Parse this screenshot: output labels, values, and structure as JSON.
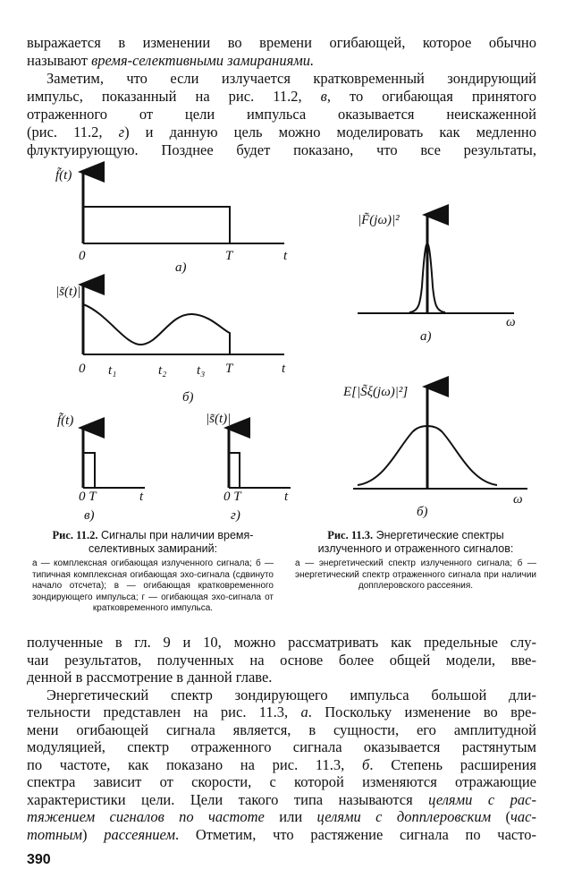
{
  "top_text": [
    [
      {
        "t": "выражается в изменении во времени огибающей, которое обычно"
      }
    ],
    [
      {
        "t": "называют "
      },
      {
        "t": "время-селективными замираниями.",
        "i": true
      }
    ],
    [
      {
        "t": "Заметим, что если излучается кратковременный зондирующий"
      }
    ],
    [
      {
        "t": "импульс, показанный на рис. 11.2, "
      },
      {
        "t": "в",
        "i": true
      },
      {
        "t": ", то огибающая принятого"
      }
    ],
    [
      {
        "t": "отраженного от цели импульса оказывается неискаженной"
      }
    ],
    [
      {
        "t": "(рис. 11.2, "
      },
      {
        "t": "г",
        "i": true
      },
      {
        "t": ") и данную цель можно моделировать как медленно"
      }
    ],
    [
      {
        "t": "флуктуирующую. Позднее будет показано, что все результаты,"
      }
    ]
  ],
  "fig_11_2": {
    "a": {
      "ylabel": "f̃(t)",
      "origin": "0",
      "T": "T",
      "t": "t",
      "panel": "а)"
    },
    "b": {
      "ylabel": "|s̃(t)|",
      "origin": "0",
      "t1": "t₁",
      "t2": "t₂",
      "t3": "t₃",
      "T": "T",
      "t": "t",
      "panel": "б)"
    },
    "v": {
      "ylabel": "f̃(t)",
      "origin": "0 T",
      "t": "t",
      "panel": "в)"
    },
    "g": {
      "ylabel": "|s̃(t)|",
      "origin": "0 T",
      "t": "t",
      "panel": "г)"
    },
    "caption_head": "Рис. 11.2.",
    "caption_title": "Сигналы при наличии время-селективных замираний:",
    "caption_body": "а — комплексная огибающая излученного сигнала; б — типичная комплексная огибающая эхо-сигнала (сдвинуто начало отсчета); в — огибающая кратковременного зондирующего импульса; г — огибающая эхо-сигнала от кратковременного импульса."
  },
  "fig_11_3": {
    "a": {
      "ylabel": "|F̃(jω)|²",
      "x": "ω",
      "panel": "а)"
    },
    "b": {
      "ylabel": "E[|S̃ξ(jω)|²]",
      "x": "ω",
      "panel": "б)"
    },
    "caption_head": "Рис. 11.3.",
    "caption_title": "Энергетические спектры излученного и отраженного сигналов:",
    "caption_body": "а — энергетический спектр излученного сигнала; б — энергетический спектр отраженного сигнала при наличии допплеровского рассеяния."
  },
  "bottom_text": [
    [
      {
        "t": "полученные в гл. 9 и 10, можно рассматривать как предельные слу-"
      }
    ],
    [
      {
        "t": "чаи результатов, полученных на основе более общей модели, вве-"
      }
    ],
    [
      {
        "t": "денной в рассмотрение в данной главе."
      }
    ],
    [
      {
        "t": "Энергетический спектр зондирующего импульса большой дли-"
      }
    ],
    [
      {
        "t": "тельности представлен на рис. 11.3, "
      },
      {
        "t": "а",
        "i": true
      },
      {
        "t": ". Поскольку изменение во вре-"
      }
    ],
    [
      {
        "t": "мени огибающей сигнала является, в сущности, его амплитудной"
      }
    ],
    [
      {
        "t": "модуляцией, спектр отраженного сигнала оказывается растянутым"
      }
    ],
    [
      {
        "t": "по частоте, как показано на рис. 11.3, "
      },
      {
        "t": "б",
        "i": true
      },
      {
        "t": ". Степень расширения"
      }
    ],
    [
      {
        "t": "спектра зависит от скорости, с которой изменяются отражающие"
      }
    ],
    [
      {
        "t": "характеристики цели. Цели такого типа называются "
      },
      {
        "t": "целями с рас-",
        "i": true
      }
    ],
    [
      {
        "t": "тяжением сигналов по частоте",
        "i": true
      },
      {
        "t": " или "
      },
      {
        "t": "целями с допплеровским",
        "i": true
      },
      {
        "t": " ("
      },
      {
        "t": "час-",
        "i": true
      }
    ],
    [
      {
        "t": "тотным",
        "i": true
      },
      {
        "t": ") "
      },
      {
        "t": "рассеянием",
        "i": true
      },
      {
        "t": ". Отметим, что растяжение сигнала по часто-"
      }
    ]
  ],
  "page_number": "390"
}
